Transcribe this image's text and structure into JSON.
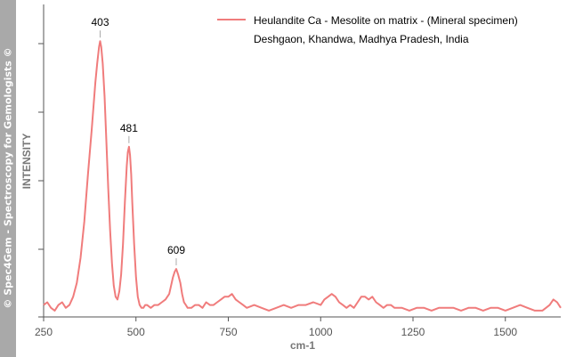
{
  "watermark": "© Spec4Gem - Spectroscopy for Gemologists ©",
  "chart_data": {
    "type": "line",
    "xlabel": "cm-1",
    "ylabel": "INTENSITY",
    "xlim": [
      250,
      1650
    ],
    "ylim": [
      0,
      100
    ],
    "x_ticks": [
      250,
      500,
      750,
      1000,
      1250,
      1500
    ],
    "x_tick_labels": [
      "250",
      "500",
      "750",
      "1000",
      "1250",
      "1500"
    ],
    "grid": false,
    "legend_position": "top-right",
    "colors": {
      "line": "#f07c7c",
      "axis": "#555555"
    },
    "series": [
      {
        "name": "Heulandite Ca -  Mesolite on matrix - (Mineral specimen)",
        "name_line2": "Deshgaon, Khandwa, Madhya Pradesh, India",
        "x": [
          250,
          260,
          270,
          280,
          290,
          300,
          310,
          320,
          330,
          340,
          350,
          360,
          370,
          380,
          390,
          395,
          400,
          403,
          406,
          410,
          415,
          420,
          425,
          430,
          435,
          440,
          445,
          450,
          455,
          460,
          465,
          470,
          475,
          478,
          481,
          484,
          487,
          490,
          495,
          500,
          505,
          510,
          515,
          520,
          525,
          530,
          540,
          550,
          560,
          570,
          580,
          590,
          595,
          600,
          605,
          609,
          614,
          620,
          625,
          630,
          635,
          640,
          650,
          660,
          670,
          680,
          690,
          700,
          710,
          720,
          730,
          740,
          750,
          760,
          770,
          780,
          790,
          800,
          820,
          840,
          860,
          880,
          900,
          920,
          940,
          960,
          980,
          1000,
          1010,
          1020,
          1030,
          1040,
          1050,
          1060,
          1070,
          1080,
          1090,
          1100,
          1110,
          1120,
          1130,
          1140,
          1150,
          1160,
          1170,
          1180,
          1190,
          1200,
          1220,
          1240,
          1260,
          1280,
          1300,
          1320,
          1340,
          1360,
          1380,
          1400,
          1420,
          1440,
          1460,
          1480,
          1500,
          1520,
          1540,
          1560,
          1580,
          1600,
          1610,
          1620,
          1630,
          1640,
          1650
        ],
        "y": [
          3,
          4,
          2,
          1,
          3,
          4,
          2,
          3,
          6,
          11,
          20,
          33,
          50,
          66,
          83,
          90,
          96,
          98,
          96,
          90,
          78,
          62,
          45,
          30,
          18,
          10,
          6,
          5,
          8,
          14,
          25,
          40,
          53,
          58,
          60,
          57,
          50,
          40,
          25,
          13,
          6,
          3,
          2,
          2,
          3,
          3,
          2,
          3,
          3,
          4,
          5,
          7,
          10,
          13,
          15,
          16,
          14,
          11,
          7,
          4,
          3,
          2,
          2,
          3,
          3,
          2,
          4,
          3,
          3,
          4,
          5,
          6,
          6,
          7,
          5,
          4,
          3,
          2,
          3,
          2,
          1,
          2,
          3,
          2,
          3,
          3,
          4,
          3,
          5,
          6,
          7,
          6,
          4,
          3,
          2,
          3,
          2,
          4,
          6,
          6,
          5,
          6,
          4,
          3,
          2,
          3,
          3,
          2,
          2,
          1,
          2,
          2,
          1,
          2,
          2,
          2,
          1,
          2,
          2,
          1,
          2,
          2,
          1,
          2,
          3,
          2,
          1,
          1,
          2,
          3,
          5,
          4,
          2
        ]
      }
    ],
    "annotations": [
      {
        "x": 403,
        "y": 98,
        "text": "403"
      },
      {
        "x": 481,
        "y": 60,
        "text": "481"
      },
      {
        "x": 609,
        "y": 16,
        "text": "609"
      }
    ]
  }
}
